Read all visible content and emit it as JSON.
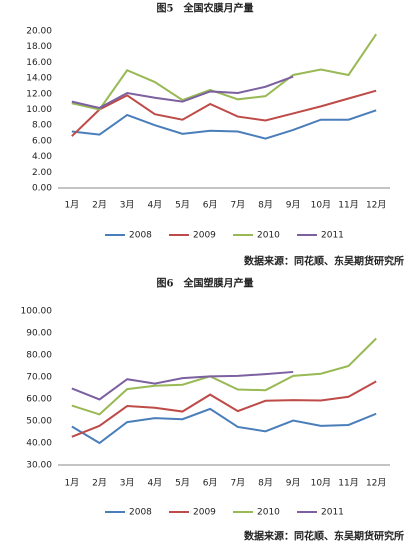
{
  "chart_data": [
    {
      "type": "line",
      "title": "图5　全国农膜月产量",
      "source": "数据来源：同花顺、东吴期货研究所",
      "categories": [
        "1月",
        "2月",
        "3月",
        "4月",
        "5月",
        "6月",
        "7月",
        "8月",
        "9月",
        "10月",
        "11月",
        "12月"
      ],
      "series": [
        {
          "name": "2008",
          "color": "#4a7ebb",
          "values": [
            7.2,
            6.8,
            9.3,
            8.0,
            6.9,
            7.3,
            7.2,
            6.3,
            7.4,
            8.7,
            8.7,
            9.9
          ]
        },
        {
          "name": "2009",
          "color": "#be4b48",
          "values": [
            6.6,
            10.0,
            11.8,
            9.4,
            8.7,
            10.7,
            9.1,
            8.6,
            9.5,
            10.4,
            11.4,
            12.4
          ]
        },
        {
          "name": "2010",
          "color": "#98b954",
          "values": [
            10.8,
            10.0,
            15.0,
            13.5,
            11.2,
            12.5,
            11.3,
            11.7,
            14.4,
            15.1,
            14.4,
            19.6
          ]
        },
        {
          "name": "2011",
          "color": "#7d60a0",
          "values": [
            11.0,
            10.2,
            12.1,
            11.5,
            11.0,
            12.3,
            12.1,
            12.9,
            14.2,
            null,
            null,
            null
          ]
        }
      ],
      "ylim": [
        0,
        20
      ],
      "yticks": [
        {
          "value": 0,
          "label": "0.00"
        },
        {
          "value": 2,
          "label": "2.00"
        },
        {
          "value": 4,
          "label": "4.00"
        },
        {
          "value": 6,
          "label": "6.00"
        },
        {
          "value": 8,
          "label": "8.00"
        },
        {
          "value": 10,
          "label": "10.00"
        },
        {
          "value": 12,
          "label": "12.00"
        },
        {
          "value": 14,
          "label": "14.00"
        },
        {
          "value": 16,
          "label": "16.00"
        },
        {
          "value": 18,
          "label": "18.00"
        },
        {
          "value": 20,
          "label": "20.00"
        }
      ],
      "grid": false,
      "legend": "bottom"
    },
    {
      "type": "line",
      "title": "图6　全国塑膜月产量",
      "source": "数据来源：同花顺、东吴期货研究所",
      "categories": [
        "1月",
        "2月",
        "3月",
        "4月",
        "5月",
        "6月",
        "7月",
        "8月",
        "9月",
        "10月",
        "11月",
        "12月"
      ],
      "series": [
        {
          "name": "2008",
          "color": "#4a7ebb",
          "values": [
            47.5,
            40.0,
            49.5,
            51.3,
            50.8,
            55.5,
            47.3,
            45.3,
            50.2,
            47.8,
            48.2,
            53.3
          ]
        },
        {
          "name": "2009",
          "color": "#be4b48",
          "values": [
            42.8,
            47.8,
            56.8,
            56.0,
            54.3,
            62.0,
            54.5,
            59.2,
            59.5,
            59.3,
            61.0,
            68.0
          ]
        },
        {
          "name": "2010",
          "color": "#98b954",
          "values": [
            57.0,
            53.0,
            64.5,
            66.0,
            66.5,
            70.3,
            64.3,
            64.0,
            70.5,
            71.5,
            75.0,
            87.5
          ]
        },
        {
          "name": "2011",
          "color": "#7d60a0",
          "values": [
            64.8,
            59.8,
            69.0,
            67.0,
            69.5,
            70.3,
            70.5,
            71.3,
            72.3,
            null,
            null,
            null
          ]
        }
      ],
      "ylim": [
        30,
        100
      ],
      "yticks": [
        {
          "value": 30,
          "label": "30.00"
        },
        {
          "value": 40,
          "label": "40.00"
        },
        {
          "value": 50,
          "label": "50.00"
        },
        {
          "value": 60,
          "label": "60.00"
        },
        {
          "value": 70,
          "label": "70.00"
        },
        {
          "value": 80,
          "label": "80.00"
        },
        {
          "value": 90,
          "label": "90.00"
        },
        {
          "value": 100,
          "label": "100.00"
        }
      ],
      "grid": false,
      "legend": "bottom"
    }
  ]
}
